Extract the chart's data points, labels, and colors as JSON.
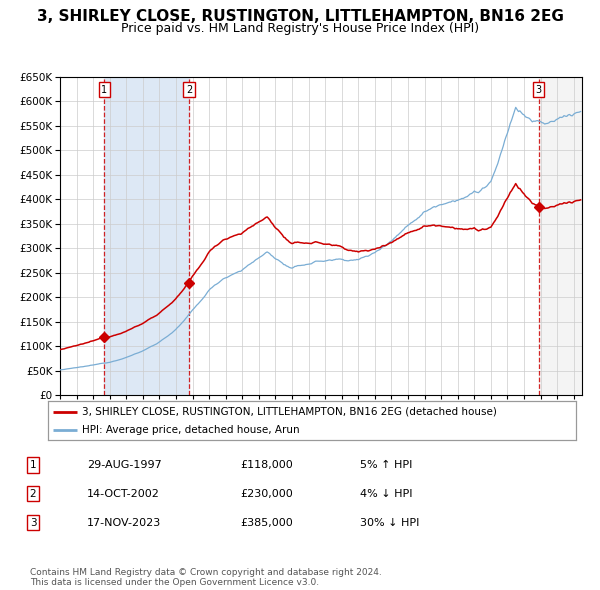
{
  "title": "3, SHIRLEY CLOSE, RUSTINGTON, LITTLEHAMPTON, BN16 2EG",
  "subtitle": "Price paid vs. HM Land Registry's House Price Index (HPI)",
  "ylim": [
    0,
    650000
  ],
  "yticks": [
    0,
    50000,
    100000,
    150000,
    200000,
    250000,
    300000,
    350000,
    400000,
    450000,
    500000,
    550000,
    600000,
    650000
  ],
  "xlim_start": 1995.0,
  "xlim_end": 2026.5,
  "sale_dates": [
    1997.664,
    2002.786,
    2023.877
  ],
  "sale_prices": [
    118000,
    230000,
    385000
  ],
  "sale_labels": [
    "1",
    "2",
    "3"
  ],
  "sale_info": [
    {
      "label": "1",
      "date": "29-AUG-1997",
      "price": "£118,000",
      "hpi": "5% ↑ HPI"
    },
    {
      "label": "2",
      "date": "14-OCT-2002",
      "price": "£230,000",
      "hpi": "4% ↓ HPI"
    },
    {
      "label": "3",
      "date": "17-NOV-2023",
      "price": "£385,000",
      "hpi": "30% ↓ HPI"
    }
  ],
  "red_line_color": "#cc0000",
  "blue_line_color": "#7aadd4",
  "shaded_region_color": "#dde8f5",
  "vline_color": "#cc0000",
  "background_color": "#ffffff",
  "grid_color": "#cccccc",
  "title_fontsize": 11,
  "subtitle_fontsize": 9,
  "tick_fontsize": 7.5,
  "legend_fontsize": 8,
  "footer_fontsize": 6.5,
  "footer_text": "Contains HM Land Registry data © Crown copyright and database right 2024.\nThis data is licensed under the Open Government Licence v3.0.",
  "legend_entries": [
    "3, SHIRLEY CLOSE, RUSTINGTON, LITTLEHAMPTON, BN16 2EG (detached house)",
    "HPI: Average price, detached house, Arun"
  ]
}
